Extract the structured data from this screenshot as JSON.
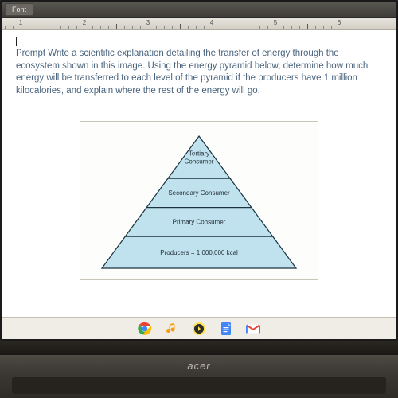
{
  "toolbar": {
    "font_label": "Font"
  },
  "ruler": {
    "numbers": [
      1,
      2,
      3,
      4,
      5,
      6
    ]
  },
  "prompt": {
    "text": "Prompt Write a scientific explanation detailing the transfer of energy through the ecosystem shown in this image. Using the energy pyramid below, determine how much energy will be transferred to each level of the pyramid if the producers have 1 million kilocalories, and explain where the rest of the energy will go."
  },
  "pyramid": {
    "type": "pyramid",
    "fill": "#c0e2ef",
    "stroke": "#1a3340",
    "stroke_width": 1.2,
    "levels": [
      {
        "label_lines": [
          "Tertiary",
          "Consumer"
        ],
        "fontsize": 8
      },
      {
        "label_lines": [
          "Secondary Consumer"
        ],
        "fontsize": 8
      },
      {
        "label_lines": [
          "Primary Consumer"
        ],
        "fontsize": 8
      },
      {
        "label_lines": [
          "Producers = 1,000,000 kcal"
        ],
        "fontsize": 8
      }
    ]
  },
  "taskbar": {
    "icons": [
      {
        "name": "chrome-icon"
      },
      {
        "name": "music-icon"
      },
      {
        "name": "norton-icon"
      },
      {
        "name": "docs-icon"
      },
      {
        "name": "gmail-icon"
      }
    ]
  },
  "brand": {
    "name": "acer"
  }
}
